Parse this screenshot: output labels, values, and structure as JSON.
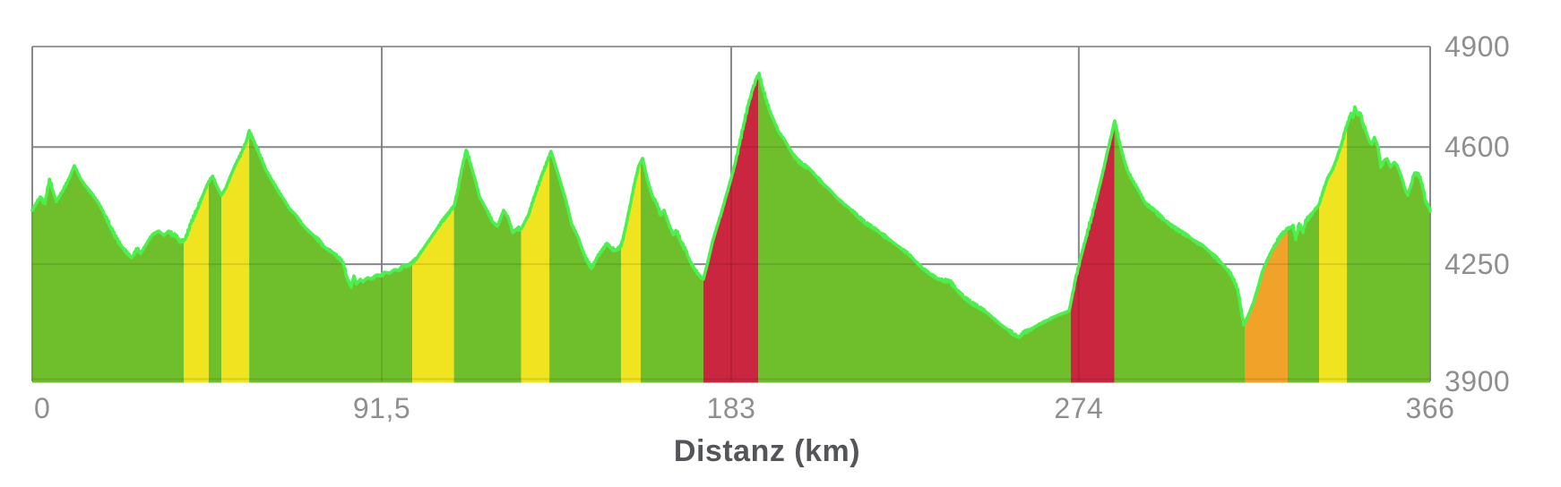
{
  "chart_data": {
    "type": "area",
    "title": "",
    "xlabel": "Distanz (km)",
    "ylabel": "",
    "x_unit": "km",
    "y_unit": "m",
    "xlim": [
      0,
      366
    ],
    "ylim": [
      3900,
      4900
    ],
    "grid": true,
    "legend": false,
    "line_noise_m": 5,
    "x_ticks": [
      {
        "value": 0,
        "label": "0"
      },
      {
        "value": 91.5,
        "label": "91,5"
      },
      {
        "value": 183,
        "label": "183"
      },
      {
        "value": 274,
        "label": "274"
      },
      {
        "value": 366,
        "label": "366"
      }
    ],
    "y_ticks": [
      {
        "value": 4900,
        "label": "4900"
      },
      {
        "value": 4600,
        "label": "4600"
      },
      {
        "value": 4250,
        "label": "4250"
      },
      {
        "value": 3900,
        "label": "3900"
      }
    ],
    "colors": {
      "green": "#6fbe2b",
      "yellow": "#f0e420",
      "orange": "#f0a328",
      "red": "#ca2640",
      "line": "#4af14d",
      "grid": "#98999a",
      "grid_overlay": "rgba(0,0,0,0.10)",
      "tick_label": "#8e8f91",
      "axis_title": "#545559"
    },
    "segments": [
      {
        "from": 0,
        "to": 39.7,
        "grade": "green"
      },
      {
        "from": 39.7,
        "to": 46.2,
        "grade": "yellow"
      },
      {
        "from": 46.2,
        "to": 49.5,
        "grade": "green"
      },
      {
        "from": 49.5,
        "to": 56.8,
        "grade": "yellow"
      },
      {
        "from": 56.8,
        "to": 99.5,
        "grade": "green"
      },
      {
        "from": 99.5,
        "to": 110.4,
        "grade": "yellow"
      },
      {
        "from": 110.4,
        "to": 128,
        "grade": "green"
      },
      {
        "from": 128,
        "to": 135.4,
        "grade": "yellow"
      },
      {
        "from": 135.4,
        "to": 154.2,
        "grade": "green"
      },
      {
        "from": 154.2,
        "to": 159.3,
        "grade": "yellow"
      },
      {
        "from": 159.3,
        "to": 175.7,
        "grade": "green"
      },
      {
        "from": 175.7,
        "to": 190.1,
        "grade": "red"
      },
      {
        "from": 190.1,
        "to": 271.9,
        "grade": "green"
      },
      {
        "from": 271.9,
        "to": 283.3,
        "grade": "red"
      },
      {
        "from": 283.3,
        "to": 317.6,
        "grade": "orange_pre_green"
      },
      {
        "from": 317.6,
        "to": 328.7,
        "grade": "orange"
      },
      {
        "from": 328.7,
        "to": 336.9,
        "grade": "green"
      },
      {
        "from": 336.9,
        "to": 344.2,
        "grade": "yellow"
      },
      {
        "from": 344.2,
        "to": 366,
        "grade": "green"
      }
    ],
    "profile": [
      [
        0,
        4411
      ],
      [
        1,
        4432
      ],
      [
        2.1,
        4451
      ],
      [
        3.3,
        4430
      ],
      [
        4.5,
        4504
      ],
      [
        5.4,
        4470
      ],
      [
        6.3,
        4437
      ],
      [
        8,
        4470
      ],
      [
        9.6,
        4504
      ],
      [
        11,
        4544
      ],
      [
        12.7,
        4504
      ],
      [
        14.3,
        4478
      ],
      [
        15.7,
        4459
      ],
      [
        17.4,
        4432
      ],
      [
        19,
        4397
      ],
      [
        20.4,
        4363
      ],
      [
        22.1,
        4325
      ],
      [
        23.7,
        4298
      ],
      [
        26,
        4269
      ],
      [
        27.5,
        4296
      ],
      [
        28.4,
        4282
      ],
      [
        29.8,
        4309
      ],
      [
        31.4,
        4338
      ],
      [
        33.1,
        4349
      ],
      [
        34.5,
        4336
      ],
      [
        35.7,
        4349
      ],
      [
        36.8,
        4338
      ],
      [
        37.8,
        4336
      ],
      [
        38.5,
        4317
      ],
      [
        39.7,
        4322
      ],
      [
        40.1,
        4325
      ],
      [
        41.5,
        4371
      ],
      [
        43.2,
        4416
      ],
      [
        44.8,
        4459
      ],
      [
        46.2,
        4497
      ],
      [
        47.2,
        4513
      ],
      [
        48.3,
        4483
      ],
      [
        49.5,
        4456
      ],
      [
        50.7,
        4478
      ],
      [
        51.9,
        4513
      ],
      [
        53.3,
        4550
      ],
      [
        54.9,
        4585
      ],
      [
        56.1,
        4619
      ],
      [
        56.8,
        4649
      ],
      [
        57.9,
        4619
      ],
      [
        59.6,
        4577
      ],
      [
        61.2,
        4531
      ],
      [
        62.6,
        4504
      ],
      [
        64.3,
        4470
      ],
      [
        65.9,
        4443
      ],
      [
        67.3,
        4416
      ],
      [
        69,
        4397
      ],
      [
        70.6,
        4371
      ],
      [
        72,
        4352
      ],
      [
        73.7,
        4336
      ],
      [
        75.3,
        4317
      ],
      [
        76.7,
        4298
      ],
      [
        78.4,
        4288
      ],
      [
        80,
        4272
      ],
      [
        81.4,
        4255
      ],
      [
        82.4,
        4210
      ],
      [
        83.5,
        4181
      ],
      [
        84.2,
        4215
      ],
      [
        84.9,
        4191
      ],
      [
        85.9,
        4205
      ],
      [
        86.6,
        4197
      ],
      [
        87.8,
        4210
      ],
      [
        88.9,
        4205
      ],
      [
        90.1,
        4218
      ],
      [
        91.3,
        4215
      ],
      [
        92.4,
        4226
      ],
      [
        93.6,
        4223
      ],
      [
        94.8,
        4234
      ],
      [
        96,
        4231
      ],
      [
        97.1,
        4245
      ],
      [
        98.3,
        4245
      ],
      [
        99.5,
        4255
      ],
      [
        100.7,
        4269
      ],
      [
        102.5,
        4298
      ],
      [
        104.9,
        4338
      ],
      [
        107.2,
        4376
      ],
      [
        109.6,
        4411
      ],
      [
        110.5,
        4425
      ],
      [
        111.4,
        4472
      ],
      [
        112.4,
        4532
      ],
      [
        113.6,
        4590
      ],
      [
        114.7,
        4552
      ],
      [
        115.9,
        4504
      ],
      [
        117.1,
        4451
      ],
      [
        119,
        4411
      ],
      [
        120.6,
        4376
      ],
      [
        121.8,
        4363
      ],
      [
        123.4,
        4411
      ],
      [
        124.6,
        4389
      ],
      [
        125.8,
        4344
      ],
      [
        126.9,
        4357
      ],
      [
        128,
        4355
      ],
      [
        129.9,
        4397
      ],
      [
        131.8,
        4464
      ],
      [
        133.5,
        4518
      ],
      [
        134.9,
        4558
      ],
      [
        135.8,
        4587
      ],
      [
        137,
        4544
      ],
      [
        138.4,
        4491
      ],
      [
        139.8,
        4437
      ],
      [
        141.2,
        4371
      ],
      [
        142.9,
        4330
      ],
      [
        144.5,
        4277
      ],
      [
        146.4,
        4237
      ],
      [
        148,
        4272
      ],
      [
        150.4,
        4312
      ],
      [
        151.6,
        4298
      ],
      [
        152.7,
        4290
      ],
      [
        154.2,
        4304
      ],
      [
        155.3,
        4357
      ],
      [
        156.5,
        4424
      ],
      [
        157.7,
        4491
      ],
      [
        158.8,
        4544
      ],
      [
        159.8,
        4566
      ],
      [
        161,
        4504
      ],
      [
        162.4,
        4451
      ],
      [
        163.5,
        4432
      ],
      [
        164.5,
        4397
      ],
      [
        165.4,
        4411
      ],
      [
        166.6,
        4371
      ],
      [
        167.8,
        4338
      ],
      [
        168.7,
        4349
      ],
      [
        169.9,
        4317
      ],
      [
        171.1,
        4290
      ],
      [
        172.2,
        4258
      ],
      [
        173.4,
        4237
      ],
      [
        174.6,
        4215
      ],
      [
        175.7,
        4205
      ],
      [
        176.9,
        4258
      ],
      [
        178.1,
        4317
      ],
      [
        179.3,
        4363
      ],
      [
        180.4,
        4403
      ],
      [
        181.6,
        4451
      ],
      [
        182.8,
        4499
      ],
      [
        184,
        4550
      ],
      [
        185.1,
        4606
      ],
      [
        186.3,
        4670
      ],
      [
        187.5,
        4727
      ],
      [
        188.6,
        4772
      ],
      [
        189.6,
        4804
      ],
      [
        190.3,
        4820
      ],
      [
        191.2,
        4777
      ],
      [
        192.2,
        4740
      ],
      [
        193.1,
        4707
      ],
      [
        194.3,
        4675
      ],
      [
        195.4,
        4646
      ],
      [
        196.9,
        4622
      ],
      [
        198.5,
        4590
      ],
      [
        200.1,
        4563
      ],
      [
        201.8,
        4547
      ],
      [
        203.4,
        4536
      ],
      [
        205.1,
        4515
      ],
      [
        206.9,
        4491
      ],
      [
        208.8,
        4472
      ],
      [
        210.7,
        4448
      ],
      [
        212.6,
        4429
      ],
      [
        214.4,
        4413
      ],
      [
        216.3,
        4392
      ],
      [
        218.2,
        4373
      ],
      [
        220.1,
        4360
      ],
      [
        222,
        4344
      ],
      [
        223.8,
        4328
      ],
      [
        225.7,
        4312
      ],
      [
        227.6,
        4296
      ],
      [
        229.5,
        4280
      ],
      [
        231.3,
        4258
      ],
      [
        233.2,
        4237
      ],
      [
        235.1,
        4221
      ],
      [
        237,
        4207
      ],
      [
        238.6,
        4202
      ],
      [
        240.3,
        4199
      ],
      [
        242.1,
        4173
      ],
      [
        244,
        4151
      ],
      [
        245.9,
        4135
      ],
      [
        247.8,
        4122
      ],
      [
        249.7,
        4108
      ],
      [
        251.5,
        4090
      ],
      [
        253.4,
        4071
      ],
      [
        255.3,
        4055
      ],
      [
        256.9,
        4042
      ],
      [
        258.3,
        4031
      ],
      [
        259.7,
        4047
      ],
      [
        261.1,
        4052
      ],
      [
        262.5,
        4063
      ],
      [
        264.2,
        4074
      ],
      [
        266.1,
        4084
      ],
      [
        267.9,
        4095
      ],
      [
        269.8,
        4103
      ],
      [
        271.5,
        4111
      ],
      [
        273.1,
        4202
      ],
      [
        274.5,
        4269
      ],
      [
        275.9,
        4330
      ],
      [
        277.3,
        4389
      ],
      [
        278.7,
        4451
      ],
      [
        280.1,
        4515
      ],
      [
        281.5,
        4585
      ],
      [
        282.7,
        4643
      ],
      [
        283.4,
        4678
      ],
      [
        284.6,
        4617
      ],
      [
        285.8,
        4563
      ],
      [
        286.9,
        4526
      ],
      [
        288.1,
        4499
      ],
      [
        289.3,
        4478
      ],
      [
        290.5,
        4451
      ],
      [
        291.6,
        4429
      ],
      [
        292.8,
        4421
      ],
      [
        294,
        4408
      ],
      [
        295.4,
        4392
      ],
      [
        297,
        4376
      ],
      [
        298.9,
        4360
      ],
      [
        300.8,
        4346
      ],
      [
        302.7,
        4333
      ],
      [
        304.5,
        4317
      ],
      [
        306.4,
        4306
      ],
      [
        308.3,
        4287
      ],
      [
        309.9,
        4269
      ],
      [
        311.3,
        4253
      ],
      [
        312.7,
        4237
      ],
      [
        314.1,
        4215
      ],
      [
        315.6,
        4175
      ],
      [
        316.5,
        4116
      ],
      [
        317.2,
        4068
      ],
      [
        318.6,
        4103
      ],
      [
        319.8,
        4138
      ],
      [
        321,
        4184
      ],
      [
        322.1,
        4229
      ],
      [
        323.3,
        4261
      ],
      [
        324.5,
        4290
      ],
      [
        325.6,
        4312
      ],
      [
        326.8,
        4333
      ],
      [
        328,
        4349
      ],
      [
        328.7,
        4355
      ],
      [
        329.4,
        4360
      ],
      [
        330.1,
        4366
      ],
      [
        330.8,
        4323
      ],
      [
        331.7,
        4371
      ],
      [
        332.7,
        4344
      ],
      [
        333.4,
        4381
      ],
      [
        334.6,
        4392
      ],
      [
        335.5,
        4408
      ],
      [
        336.4,
        4421
      ],
      [
        336.9,
        4429
      ],
      [
        338.1,
        4472
      ],
      [
        339.2,
        4509
      ],
      [
        340.4,
        4531
      ],
      [
        341.6,
        4568
      ],
      [
        342.8,
        4608
      ],
      [
        343.7,
        4647
      ],
      [
        344.2,
        4663
      ],
      [
        344.9,
        4690
      ],
      [
        345.3,
        4701
      ],
      [
        345.8,
        4688
      ],
      [
        346.3,
        4720
      ],
      [
        347,
        4696
      ],
      [
        347.7,
        4701
      ],
      [
        348.4,
        4670
      ],
      [
        349.3,
        4643
      ],
      [
        350,
        4619
      ],
      [
        350.7,
        4608
      ],
      [
        351.4,
        4629
      ],
      [
        352.4,
        4597
      ],
      [
        353.1,
        4539
      ],
      [
        354,
        4560
      ],
      [
        354.7,
        4565
      ],
      [
        355.6,
        4541
      ],
      [
        356.6,
        4554
      ],
      [
        357.3,
        4546
      ],
      [
        358.5,
        4510
      ],
      [
        359.4,
        4475
      ],
      [
        360.1,
        4456
      ],
      [
        361,
        4488
      ],
      [
        361.7,
        4515
      ],
      [
        362.4,
        4523
      ],
      [
        363.4,
        4510
      ],
      [
        364.1,
        4475
      ],
      [
        364.8,
        4440
      ],
      [
        365.5,
        4421
      ],
      [
        366,
        4408
      ]
    ]
  }
}
